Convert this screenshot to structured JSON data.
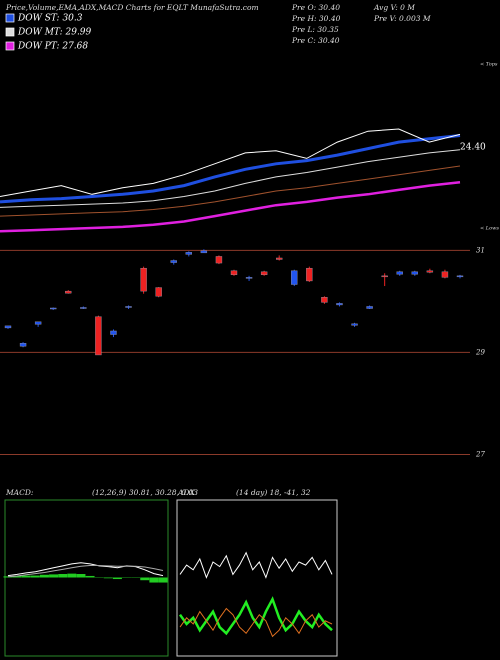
{
  "header": {
    "title": "Price,Volume,EMA,ADX,MACD Charts for EQLT MunafaSutra.com",
    "stats": [
      "Pre  O: 30.40",
      "Pre  H: 30.40",
      "Pre  L: 30.35",
      "Pre  C: 30.40"
    ],
    "stats2": [
      "Avg V: 0  M",
      "Pre  V: 0.003 M"
    ]
  },
  "chart_data": [
    {
      "type": "line",
      "ylim": [
        22,
        32
      ],
      "annotations": [
        "24.40",
        "< Tops",
        "< Lows"
      ],
      "series": [
        {
          "name": "DOW ST: 30.3",
          "color": "#1f4fe0",
          "values": [
            24.06,
            24.18,
            24.24,
            24.35,
            24.47,
            24.65,
            24.94,
            25.41,
            25.82,
            26.12,
            26.29,
            26.59,
            26.94,
            27.29,
            27.47,
            27.65
          ]
        },
        {
          "color": "#ffffff",
          "values": [
            24.35,
            24.65,
            24.94,
            24.47,
            24.82,
            25.06,
            25.53,
            26.12,
            26.71,
            26.82,
            26.41,
            27.29,
            27.88,
            28.0,
            27.29,
            27.71
          ]
        },
        {
          "name": "DOW MT: 29.99",
          "color": "#dddddd",
          "values": [
            23.76,
            23.82,
            23.88,
            23.94,
            24.0,
            24.12,
            24.35,
            24.65,
            25.06,
            25.41,
            25.65,
            25.94,
            26.24,
            26.47,
            26.71,
            26.88
          ]
        },
        {
          "color": "#a0522d",
          "values": [
            23.29,
            23.35,
            23.41,
            23.47,
            23.53,
            23.65,
            23.82,
            24.06,
            24.35,
            24.65,
            24.82,
            25.06,
            25.29,
            25.53,
            25.76,
            26.0
          ]
        },
        {
          "name": "DOW PT: 27.68",
          "color": "#e020e0",
          "values": [
            22.47,
            22.53,
            22.59,
            22.65,
            22.71,
            22.82,
            23.0,
            23.29,
            23.59,
            23.88,
            24.06,
            24.29,
            24.47,
            24.71,
            24.94,
            25.12
          ]
        }
      ]
    },
    {
      "type": "candlestick",
      "ylim": [
        26.5,
        31.3
      ],
      "yticks": [
        31,
        29,
        27
      ],
      "up_color": "#2255ee",
      "down_color": "#ee2222",
      "open": [
        29.48,
        29.12,
        29.55,
        29.85,
        30.2,
        29.86,
        29.7,
        29.35,
        29.88,
        30.65,
        30.27,
        30.76,
        30.92,
        30.95,
        30.88,
        30.6,
        30.45,
        30.58,
        30.85,
        30.33,
        30.65,
        30.08,
        29.93,
        29.53,
        29.86,
        30.5,
        30.53,
        30.53,
        30.6,
        30.58,
        30.48
      ],
      "high": [
        29.52,
        29.2,
        29.6,
        29.88,
        30.22,
        29.9,
        29.72,
        29.45,
        29.92,
        30.68,
        30.28,
        30.82,
        30.98,
        31.02,
        30.9,
        30.62,
        30.5,
        30.6,
        30.9,
        30.62,
        30.68,
        30.1,
        29.98,
        29.58,
        29.92,
        30.55,
        30.6,
        30.6,
        30.64,
        30.62,
        30.52
      ],
      "low": [
        29.46,
        29.1,
        29.5,
        29.83,
        30.15,
        29.85,
        28.95,
        29.3,
        29.85,
        30.15,
        30.08,
        30.72,
        30.88,
        30.95,
        30.73,
        30.5,
        30.4,
        30.5,
        30.8,
        30.3,
        30.38,
        29.95,
        29.9,
        29.5,
        29.85,
        30.3,
        30.5,
        30.5,
        30.55,
        30.45,
        30.45
      ],
      "close": [
        29.52,
        29.18,
        29.6,
        29.87,
        30.16,
        29.88,
        28.95,
        29.42,
        29.9,
        30.2,
        30.1,
        30.8,
        30.96,
        30.99,
        30.75,
        30.52,
        30.47,
        30.52,
        30.82,
        30.6,
        30.4,
        29.98,
        29.96,
        29.56,
        29.9,
        30.48,
        30.58,
        30.58,
        30.57,
        30.47,
        30.5
      ]
    },
    {
      "type": "macd",
      "title": "MACD:",
      "subtitle": "(12,26,9) 30.81, 30.28, 0.03",
      "ylim": [
        -2,
        2
      ],
      "series": [
        {
          "color": "#ffffff",
          "values": [
            0.05,
            0.08,
            0.12,
            0.15,
            0.2,
            0.25,
            0.3,
            0.35,
            0.38,
            0.35,
            0.3,
            0.28,
            0.25,
            0.3,
            0.28,
            0.2,
            0.1,
            0.05
          ]
        },
        {
          "color": "#aaaaaa",
          "values": [
            0.02,
            0.04,
            0.07,
            0.1,
            0.13,
            0.17,
            0.21,
            0.25,
            0.29,
            0.31,
            0.31,
            0.3,
            0.29,
            0.29,
            0.29,
            0.27,
            0.23,
            0.18
          ]
        }
      ],
      "histogram": {
        "color": "#22cc22",
        "values": [
          0.03,
          0.04,
          0.05,
          0.05,
          0.07,
          0.08,
          0.09,
          0.1,
          0.09,
          0.04,
          -0.01,
          -0.02,
          -0.04,
          0.01,
          -0.01,
          -0.07,
          -0.13,
          -0.13
        ]
      }
    },
    {
      "type": "adx",
      "title": "ADX",
      "subtitle": "(14 day) 18, -41, 32",
      "ylim": [
        0,
        100
      ],
      "series": [
        {
          "color": "#ffffff",
          "values": [
            52,
            58,
            55,
            62,
            50,
            60,
            57,
            64,
            52,
            58,
            66,
            55,
            60,
            50,
            63,
            56,
            62,
            54,
            60,
            58,
            63,
            55,
            61,
            52
          ]
        },
        {
          "color": "#22ee22",
          "values": [
            26,
            20,
            24,
            16,
            22,
            28,
            18,
            14,
            20,
            26,
            34,
            24,
            18,
            28,
            36,
            24,
            16,
            20,
            28,
            22,
            18,
            26,
            20,
            16
          ]
        },
        {
          "color": "#e07020",
          "values": [
            18,
            24,
            20,
            28,
            22,
            16,
            24,
            30,
            26,
            18,
            14,
            20,
            26,
            22,
            12,
            16,
            24,
            20,
            14,
            22,
            26,
            18,
            22,
            20
          ]
        }
      ]
    }
  ]
}
